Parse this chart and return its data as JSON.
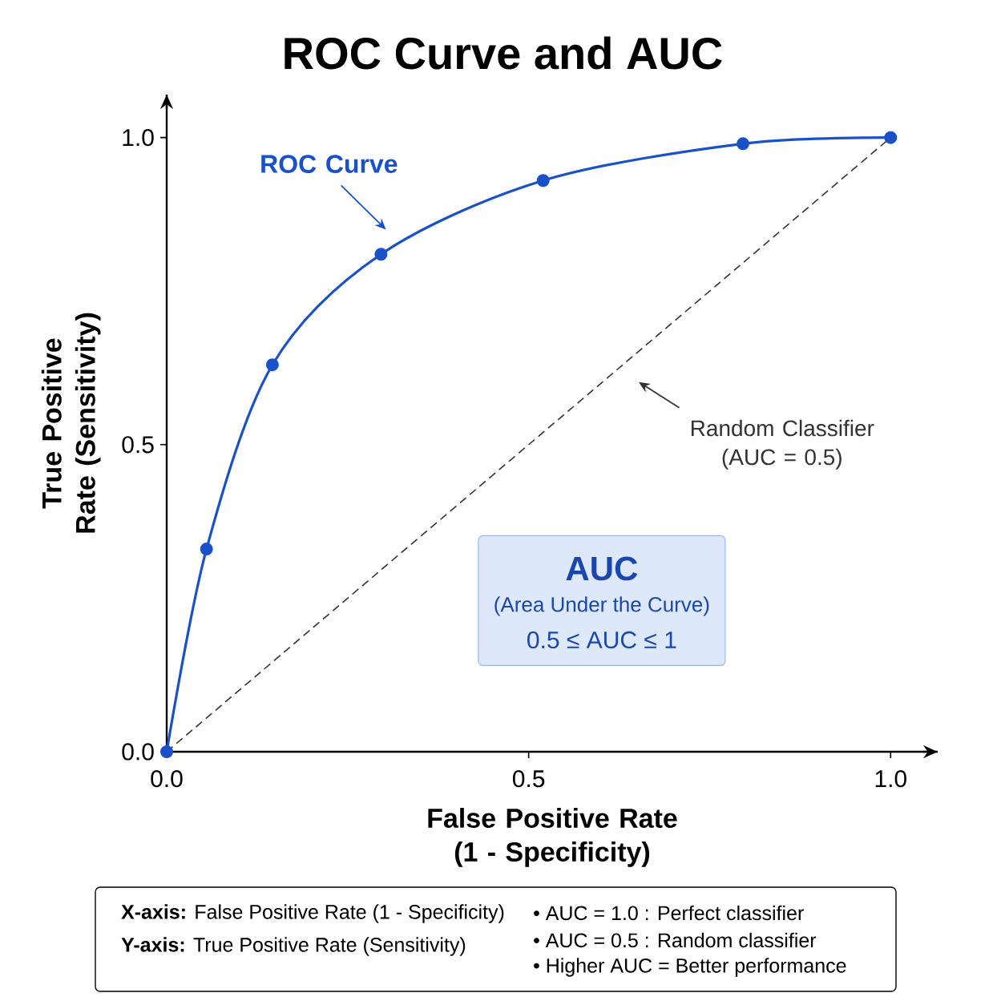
{
  "chart_data": {
    "type": "line",
    "title": "ROC Curve and AUC",
    "xlabel": "False Positive Rate (1 - Specificity)",
    "ylabel": "True Positive Rate (Sensitivity)",
    "xlim": [
      0,
      1.065
    ],
    "ylim": [
      0,
      1.07
    ],
    "xticks": [
      {
        "value": 0,
        "label": "0.0"
      },
      {
        "value": 0.5,
        "label": "0.5"
      },
      {
        "value": 1,
        "label": "1.0"
      }
    ],
    "yticks": [
      {
        "value": 0,
        "label": "0.0"
      },
      {
        "value": 0.5,
        "label": "0.5"
      },
      {
        "value": 1,
        "label": "1.0"
      }
    ],
    "series": [
      {
        "name": "ROC Curve",
        "color": "#1a50c8",
        "marker": "circle",
        "line_style": "solid",
        "x": [
          0,
          0.055,
          0.146,
          0.296,
          0.52,
          0.796,
          1
        ],
        "values": [
          0,
          0.33,
          0.63,
          0.81,
          0.93,
          0.99,
          1
        ]
      },
      {
        "name": "Random Classifier (AUC = 0.5)",
        "color": "#333333",
        "marker": "none",
        "line_style": "dashed",
        "x": [
          0,
          1
        ],
        "values": [
          0,
          1
        ]
      }
    ],
    "annotations": [
      "AUC",
      "(Area Under the Curve)",
      "0.5 ≤ AUC ≤ 1",
      "**X-axis:** False Positive Rate (1 - Specificity)",
      "**Y-axis:** True Positive Rate (Sensitivity)",
      "• AUC = 1.0 : Perfect classifier",
      "• AUC = 0.5 : Random classifier",
      "• Higher AUC = Better performance"
    ]
  }
}
